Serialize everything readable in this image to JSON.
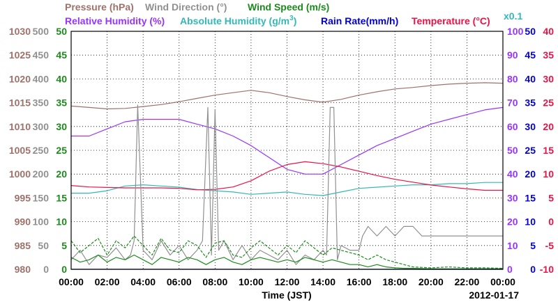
{
  "chart_data": {
    "type": "line",
    "date": "2012-01-17",
    "xlabel": "Time (JST)",
    "x_ticks": [
      "00:00",
      "02:00",
      "04:00",
      "06:00",
      "08:00",
      "10:00",
      "12:00",
      "14:00",
      "16:00",
      "18:00",
      "20:00",
      "22:00",
      "00:00"
    ],
    "xlim": [
      0,
      24
    ],
    "scale_note": "x0.1",
    "colors": {
      "pressure": "#a0706a",
      "wind_direction": "#909090",
      "wind_speed": "#1a8c1a",
      "relative_humidity": "#9933ff",
      "absolute_humidity": "#33b8b8",
      "rain_rate": "#0000dd",
      "temperature": "#ee1144"
    },
    "axes": {
      "pressure": {
        "label": "Pressure (hPa)",
        "ticks": [
          "1030",
          "1025",
          "1020",
          "1015",
          "1010",
          "1005",
          "1000",
          "995",
          "990",
          "985",
          "980"
        ],
        "range": [
          980,
          1030
        ]
      },
      "wind_direction": {
        "label": "Wind Direction (°)",
        "ticks": [
          "500",
          "450",
          "400",
          "350",
          "300",
          "250",
          "200",
          "150",
          "100",
          "50",
          "0"
        ],
        "range": [
          0,
          500
        ]
      },
      "wind_speed": {
        "label": "Wind Speed (m/s)",
        "ticks": [
          "50",
          "45",
          "40",
          "35",
          "30",
          "25",
          "20",
          "15",
          "10",
          "5",
          "0"
        ],
        "range": [
          0,
          50
        ]
      },
      "relative_humidity": {
        "label": "Relative Humidity (%)",
        "ticks": [
          "100",
          "90",
          "80",
          "70",
          "60",
          "50",
          "40",
          "30",
          "20",
          "10",
          "0"
        ],
        "range": [
          0,
          100
        ]
      },
      "absolute_humidity": {
        "label_pre": "Absolute Humidity (g/m",
        "label_sup": "3",
        "label_post": ")",
        "range": [
          0,
          100
        ]
      },
      "rain_rate": {
        "label": "Rain Rate(mm/h)",
        "ticks": [
          "50",
          "45",
          "40",
          "35",
          "30",
          "25",
          "20",
          "15",
          "10",
          "5",
          "0"
        ],
        "range": [
          0,
          50
        ]
      },
      "temperature": {
        "label": "Temperature (°C)",
        "ticks": [
          "40",
          "35",
          "30",
          "25",
          "20",
          "15",
          "10",
          "5",
          "0",
          "-5",
          "-10"
        ],
        "range": [
          -10,
          40
        ]
      }
    },
    "series": [
      {
        "key": "pressure",
        "name": "Pressure (hPa)",
        "x": [
          0,
          1,
          2,
          3,
          4,
          5,
          6,
          7,
          8,
          9,
          10,
          11,
          12,
          13,
          14,
          15,
          16,
          17,
          18,
          19,
          20,
          21,
          22,
          23,
          24
        ],
        "y": [
          1014.3,
          1014,
          1013.7,
          1013.8,
          1014.2,
          1014.6,
          1015.2,
          1015.9,
          1016.6,
          1017.1,
          1017.6,
          1017.1,
          1016.3,
          1015.6,
          1015.1,
          1015.7,
          1016.6,
          1017.3,
          1017.9,
          1018.2,
          1018.6,
          1018.9,
          1019.1,
          1019.2,
          1019.1
        ]
      },
      {
        "key": "relative_humidity",
        "name": "Relative Humidity (%)",
        "x": [
          0,
          1,
          2,
          3,
          4,
          5,
          6,
          7,
          8,
          9,
          10,
          11,
          12,
          13,
          14,
          15,
          16,
          17,
          18,
          19,
          20,
          21,
          22,
          23,
          24
        ],
        "y": [
          56,
          56,
          59,
          62,
          63,
          63,
          63,
          61,
          59,
          56,
          52,
          47,
          42,
          40,
          40,
          44,
          48,
          52,
          55,
          58,
          61,
          63,
          65,
          67,
          68
        ]
      },
      {
        "key": "absolute_humidity",
        "name": "Absolute Humidity (g/m3) x0.1",
        "x": [
          0,
          1,
          2,
          3,
          4,
          5,
          6,
          7,
          8,
          9,
          10,
          11,
          12,
          13,
          14,
          15,
          16,
          17,
          18,
          19,
          20,
          21,
          22,
          23,
          24
        ],
        "y": [
          32,
          32,
          33,
          35,
          35.5,
          35,
          34.5,
          33.5,
          33,
          32.5,
          31.5,
          32,
          32.5,
          31.5,
          31,
          32.5,
          34,
          34.5,
          35,
          35.5,
          35.5,
          36,
          36,
          36.5,
          36.5
        ]
      },
      {
        "key": "temperature",
        "name": "Temperature (°C)",
        "x": [
          0,
          1,
          2,
          3,
          4,
          5,
          6,
          7,
          8,
          9,
          10,
          11,
          12,
          13,
          14,
          15,
          16,
          17,
          18,
          19,
          20,
          21,
          22,
          23,
          24
        ],
        "y": [
          7.6,
          7.3,
          7.2,
          7.1,
          7.1,
          7.1,
          7.0,
          6.7,
          6.8,
          7.3,
          8.6,
          10.6,
          12.0,
          12.6,
          12.2,
          11.5,
          10.6,
          9.7,
          8.9,
          8.3,
          7.7,
          7.3,
          6.9,
          6.6,
          6.6
        ]
      },
      {
        "key": "wind_direction",
        "name": "Wind Direction (°)",
        "x": [
          0,
          0.5,
          1,
          1.5,
          2,
          2.5,
          3,
          3.3,
          3.5,
          3.7,
          4,
          4.5,
          5,
          5.5,
          6,
          6.5,
          7,
          7.3,
          7.6,
          7.8,
          8,
          8.2,
          8.5,
          9,
          9.5,
          10,
          10.5,
          11,
          11.5,
          12,
          12.5,
          13,
          13.5,
          14,
          14.2,
          14.4,
          14.6,
          14.8,
          15,
          15.5,
          16,
          16.2,
          16.5,
          17,
          17.5,
          18,
          18.5,
          19,
          19.5,
          20,
          21,
          22,
          23,
          24
        ],
        "y": [
          20,
          40,
          10,
          30,
          25,
          45,
          20,
          30,
          60,
          345,
          40,
          20,
          60,
          30,
          50,
          20,
          40,
          60,
          340,
          30,
          335,
          40,
          60,
          20,
          50,
          20,
          40,
          30,
          20,
          40,
          10,
          30,
          20,
          40,
          30,
          340,
          340,
          20,
          50,
          40,
          40,
          70,
          90,
          70,
          90,
          70,
          90,
          90,
          70,
          70,
          70,
          70,
          70,
          70
        ]
      },
      {
        "key": "wind_speed",
        "name": "Wind Speed (m/s)",
        "x": [
          0,
          0.5,
          1,
          1.5,
          2,
          2.5,
          3,
          3.5,
          4,
          4.5,
          5,
          5.5,
          6,
          6.5,
          7,
          7.5,
          8,
          8.5,
          9,
          9.5,
          10,
          10.5,
          11,
          11.5,
          12,
          12.5,
          13,
          13.5,
          14,
          14.5,
          15,
          15.5,
          16,
          16.5,
          17,
          17.5,
          18,
          18.5,
          19,
          20,
          21,
          22,
          23,
          24
        ],
        "y": [
          2.5,
          1.5,
          2.0,
          3.0,
          1.5,
          2.5,
          2.0,
          3.0,
          2.0,
          1.0,
          2.5,
          2.0,
          1.5,
          2.5,
          2.0,
          1.0,
          2.0,
          2.5,
          1.5,
          1.0,
          2.0,
          2.5,
          2.0,
          1.5,
          2.0,
          1.5,
          2.5,
          2.0,
          1.5,
          2.0,
          1.5,
          1.0,
          1.0,
          0.5,
          1.0,
          0.5,
          0.3,
          0.2,
          0.2,
          0.1,
          0.1,
          0.1,
          0.1,
          0.1
        ]
      },
      {
        "key": "wind_speed",
        "name": "Wind Speed (m/s) gust",
        "x": [
          0,
          0.5,
          1,
          1.5,
          2,
          2.5,
          3,
          3.5,
          4,
          4.5,
          5,
          5.5,
          6,
          6.5,
          7,
          7.5,
          8,
          8.5,
          9,
          9.5,
          10,
          10.5,
          11,
          11.5,
          12,
          12.5,
          13,
          13.5,
          14,
          14.5,
          15,
          15.5,
          16,
          16.5,
          17,
          17.5,
          18,
          18.5,
          19,
          20,
          21,
          22,
          23,
          24
        ],
        "y": [
          6.0,
          3.5,
          5.0,
          6.5,
          3.0,
          6.0,
          4.5,
          7.0,
          5.0,
          3.0,
          6.5,
          4.0,
          3.5,
          6.0,
          5.0,
          2.5,
          5.5,
          6.0,
          3.0,
          2.5,
          4.5,
          6.0,
          4.5,
          3.0,
          5.0,
          3.5,
          6.0,
          4.5,
          3.0,
          4.5,
          4.0,
          3.5,
          3.0,
          2.0,
          3.0,
          2.0,
          1.5,
          1.0,
          0.5,
          0.3,
          0.5,
          0.3,
          0.3,
          0.2
        ],
        "dashed": true
      },
      {
        "key": "rain_rate",
        "name": "Rain Rate(mm/h)",
        "x": [
          0,
          24
        ],
        "y": [
          0,
          0
        ]
      }
    ],
    "grid": true
  },
  "footer": {
    "date": "2012-01-17"
  }
}
